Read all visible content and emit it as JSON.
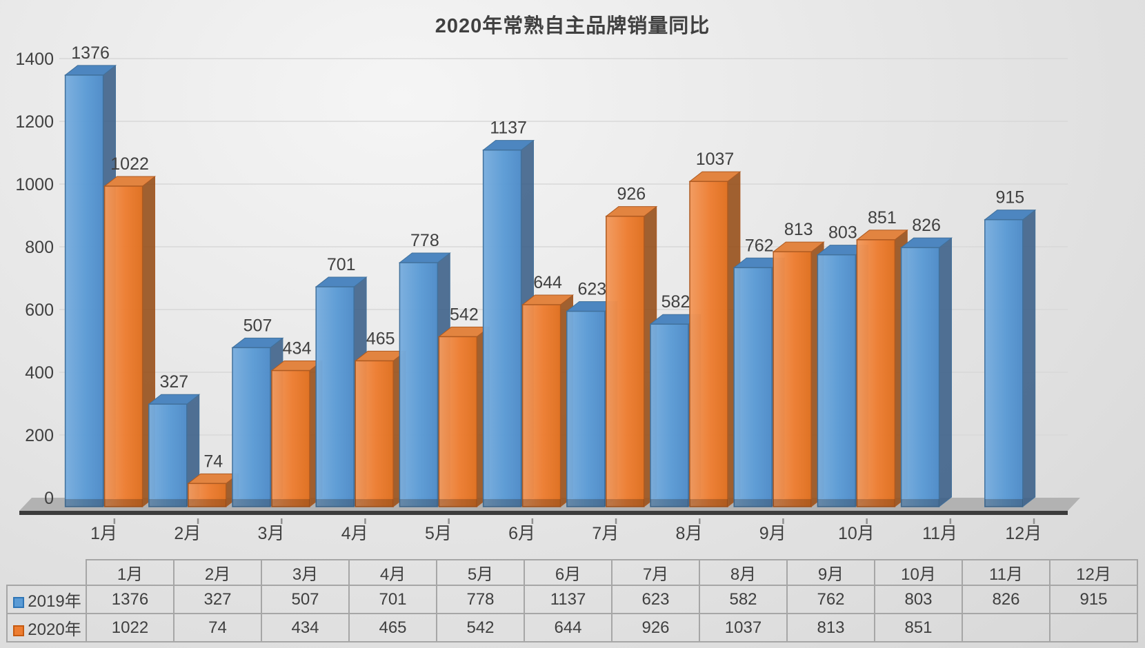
{
  "chart_data": {
    "type": "bar",
    "style": "3d-clustered-column",
    "title": "2020年常熟自主品牌销量同比",
    "categories": [
      "1月",
      "2月",
      "3月",
      "4月",
      "5月",
      "6月",
      "7月",
      "8月",
      "9月",
      "10月",
      "11月",
      "12月"
    ],
    "series": [
      {
        "name": "2019年",
        "color": "#5B9BD5",
        "values": [
          1376,
          327,
          507,
          701,
          778,
          1137,
          623,
          582,
          762,
          803,
          826,
          915
        ]
      },
      {
        "name": "2020年",
        "color": "#ED7D31",
        "values": [
          1022,
          74,
          434,
          465,
          542,
          644,
          926,
          1037,
          813,
          851,
          null,
          null
        ]
      }
    ],
    "ylim": [
      0,
      1400
    ],
    "ytick_step": 200,
    "ytick_labels": [
      "0",
      "200",
      "400",
      "600",
      "800",
      "1000",
      "1200",
      "1400"
    ],
    "grid": true,
    "data_labels": true,
    "legend_position": "table-left"
  },
  "table": {
    "headers": [
      "1月",
      "2月",
      "3月",
      "4月",
      "5月",
      "6月",
      "7月",
      "8月",
      "9月",
      "10月",
      "11月",
      "12月"
    ],
    "rows": [
      {
        "label": "2019年",
        "swatch_fill": "#5B9BD5",
        "swatch_border": "#2E75B6",
        "values": [
          "1376",
          "327",
          "507",
          "701",
          "778",
          "1137",
          "623",
          "582",
          "762",
          "803",
          "826",
          "915"
        ]
      },
      {
        "label": "2020年",
        "swatch_fill": "#ED7D31",
        "swatch_border": "#C55A11",
        "values": [
          "1022",
          "74",
          "434",
          "465",
          "542",
          "644",
          "926",
          "1037",
          "813",
          "851",
          "",
          ""
        ]
      }
    ]
  },
  "colors": {
    "series1_front": "#5B9BD5",
    "series1_edge": "#41719C",
    "series1_side": "#3A5F88",
    "series1_top": "#4D86C0",
    "series2_front": "#ED7D31",
    "series2_edge": "#AE5A21",
    "series2_side": "#99541F",
    "series2_top": "#E28440",
    "grid_line": "#d8d8d8",
    "axis_text": "#404040",
    "floor_top": "#b2b2b2",
    "floor_edge": "#3c3c3c",
    "table_border": "#a6a6a6"
  }
}
